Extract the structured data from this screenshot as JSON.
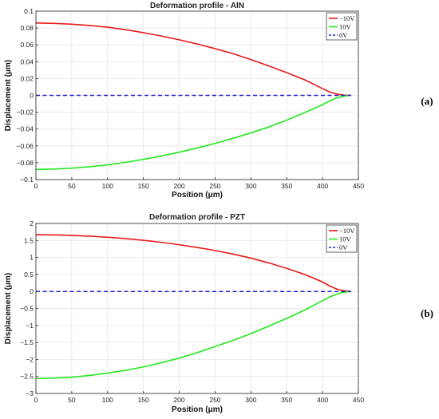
{
  "chart_data": [
    {
      "type": "line",
      "title": "Deformation profile - AlN",
      "xlabel": "Position (μm)",
      "ylabel": "Displacement (μm)",
      "xlim": [
        0,
        450
      ],
      "ylim": [
        -0.1,
        0.1
      ],
      "xticks": [
        0,
        50,
        100,
        150,
        200,
        250,
        300,
        350,
        400,
        450
      ],
      "yticks": [
        -0.1,
        -0.08,
        -0.06,
        -0.04,
        -0.02,
        0,
        0.02,
        0.04,
        0.06,
        0.08,
        0.1
      ],
      "ytick_labels": [
        "−0.1",
        "−0.08",
        "−0.06",
        "−0.04",
        "−0.02",
        "0",
        "0.02",
        "0.04",
        "0.06",
        "0.08",
        "0.1"
      ],
      "grid": true,
      "legend_position": "top-right",
      "panel_label": "(a)",
      "series": [
        {
          "name": "−10V",
          "color": "#e8191a",
          "dash": "solid",
          "x": [
            0,
            25,
            50,
            75,
            100,
            125,
            150,
            175,
            200,
            225,
            250,
            275,
            300,
            325,
            350,
            375,
            400,
            410,
            420,
            430,
            440
          ],
          "y": [
            0.086,
            0.0855,
            0.0845,
            0.083,
            0.081,
            0.078,
            0.0745,
            0.0705,
            0.066,
            0.061,
            0.0555,
            0.0495,
            0.0425,
            0.035,
            0.027,
            0.0185,
            0.008,
            0.004,
            0.0015,
            0.0003,
            0
          ]
        },
        {
          "name": "10V",
          "color": "#22e81e",
          "dash": "solid",
          "x": [
            0,
            25,
            50,
            75,
            100,
            125,
            150,
            175,
            200,
            225,
            250,
            275,
            300,
            325,
            350,
            375,
            400,
            410,
            420,
            430,
            440
          ],
          "y": [
            -0.088,
            -0.0875,
            -0.0865,
            -0.0848,
            -0.0825,
            -0.0795,
            -0.076,
            -0.072,
            -0.0675,
            -0.0625,
            -0.057,
            -0.051,
            -0.0445,
            -0.0375,
            -0.0295,
            -0.0205,
            -0.011,
            -0.0065,
            -0.003,
            -0.0008,
            0
          ]
        },
        {
          "name": "0V",
          "color": "#1f23c9",
          "dash": "dashed",
          "x": [
            0,
            440
          ],
          "y": [
            0,
            0
          ]
        }
      ]
    },
    {
      "type": "line",
      "title": "Deformation profile - PZT",
      "xlabel": "Position (μm)",
      "ylabel": "Displacement (μm)",
      "xlim": [
        0,
        450
      ],
      "ylim": [
        -3,
        2
      ],
      "xticks": [
        0,
        50,
        100,
        150,
        200,
        250,
        300,
        350,
        400,
        450
      ],
      "yticks": [
        -3,
        -2.5,
        -2,
        -1.5,
        -1,
        -0.5,
        0,
        0.5,
        1,
        1.5,
        2
      ],
      "ytick_labels": [
        "−3",
        "−2.5",
        "−2",
        "−1.5",
        "−1",
        "−0.5",
        "0",
        "0.5",
        "1",
        "1.5",
        "2"
      ],
      "grid": true,
      "legend_position": "top-right",
      "panel_label": "(b)",
      "series": [
        {
          "name": "−10V",
          "color": "#e8191a",
          "dash": "solid",
          "x": [
            0,
            25,
            50,
            75,
            100,
            125,
            150,
            175,
            200,
            225,
            250,
            275,
            300,
            325,
            350,
            375,
            400,
            410,
            420,
            430,
            440
          ],
          "y": [
            1.67,
            1.665,
            1.65,
            1.625,
            1.595,
            1.555,
            1.505,
            1.445,
            1.375,
            1.295,
            1.205,
            1.1,
            0.98,
            0.84,
            0.68,
            0.5,
            0.28,
            0.16,
            0.07,
            0.02,
            0
          ]
        },
        {
          "name": "10V",
          "color": "#22e81e",
          "dash": "solid",
          "x": [
            0,
            25,
            50,
            75,
            100,
            125,
            150,
            175,
            200,
            225,
            250,
            275,
            300,
            325,
            350,
            375,
            400,
            410,
            420,
            430,
            440
          ],
          "y": [
            -2.56,
            -2.55,
            -2.52,
            -2.47,
            -2.4,
            -2.32,
            -2.22,
            -2.1,
            -1.96,
            -1.8,
            -1.62,
            -1.44,
            -1.24,
            -1.02,
            -0.79,
            -0.55,
            -0.27,
            -0.16,
            -0.075,
            -0.02,
            0
          ]
        },
        {
          "name": "0V",
          "color": "#1f23c9",
          "dash": "dashed",
          "x": [
            0,
            440
          ],
          "y": [
            0,
            0
          ]
        }
      ]
    }
  ]
}
